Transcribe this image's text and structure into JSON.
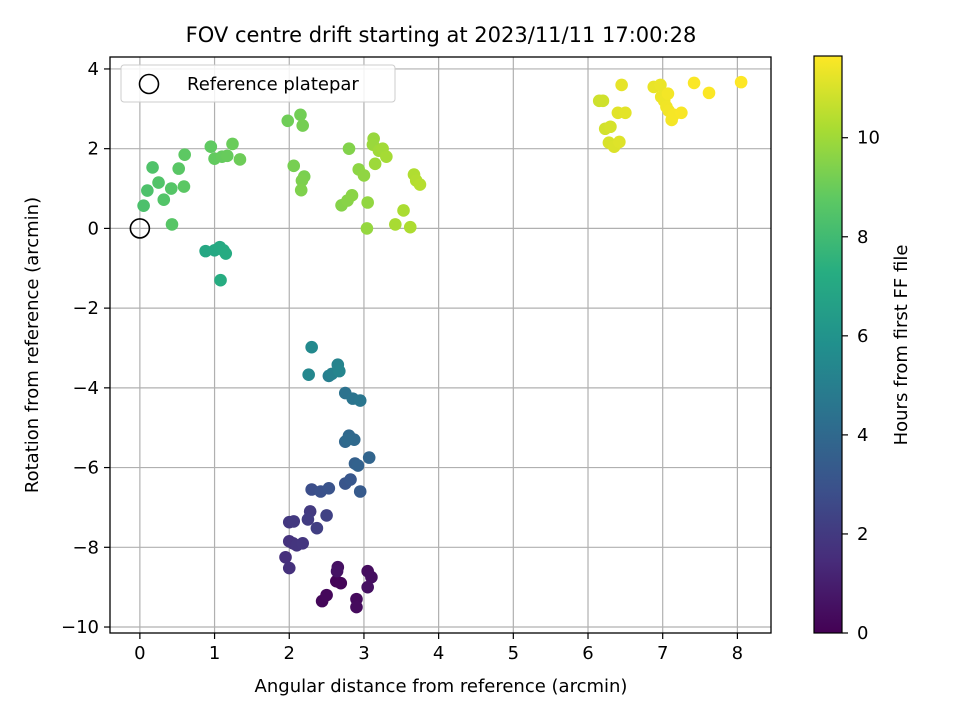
{
  "chart_data": {
    "type": "scatter",
    "title": "FOV centre drift starting at 2023/11/11 17:00:28",
    "xlabel": "Angular distance from reference (arcmin)",
    "ylabel": "Rotation from reference (arcmin)",
    "xlim": [
      -0.4,
      8.45
    ],
    "ylim": [
      -10.15,
      4.3
    ],
    "xticks": [
      0,
      1,
      2,
      3,
      4,
      5,
      6,
      7,
      8
    ],
    "yticks": [
      -10,
      -8,
      -6,
      -4,
      -2,
      0,
      2,
      4
    ],
    "grid": true,
    "legend": {
      "placement": "top-left",
      "entries": [
        "Reference platepar"
      ]
    },
    "reference_point": {
      "x": 0,
      "y": 0,
      "label": "Reference platepar"
    },
    "colorbar": {
      "label": "Hours from first FF file",
      "colormap": "viridis",
      "range": [
        0,
        11.65
      ],
      "ticks": [
        0,
        2,
        4,
        6,
        8,
        10
      ]
    },
    "series": [
      {
        "color_by": "hours",
        "points": [
          {
            "x": 2.63,
            "y": -8.85,
            "hours": 0.1
          },
          {
            "x": 2.69,
            "y": -8.9,
            "hours": 0.15
          },
          {
            "x": 2.44,
            "y": -9.35,
            "hours": 0.2
          },
          {
            "x": 2.5,
            "y": -9.2,
            "hours": 0.25
          },
          {
            "x": 2.9,
            "y": -9.3,
            "hours": 0.3
          },
          {
            "x": 2.9,
            "y": -9.5,
            "hours": 0.35
          },
          {
            "x": 3.05,
            "y": -8.6,
            "hours": 0.4
          },
          {
            "x": 3.1,
            "y": -8.75,
            "hours": 0.45
          },
          {
            "x": 3.05,
            "y": -9.0,
            "hours": 0.5
          },
          {
            "x": 2.65,
            "y": -8.5,
            "hours": 0.55
          },
          {
            "x": 2.64,
            "y": -8.6,
            "hours": 0.6
          },
          {
            "x": 1.95,
            "y": -8.25,
            "hours": 1.6
          },
          {
            "x": 2.0,
            "y": -8.52,
            "hours": 1.65
          },
          {
            "x": 2.0,
            "y": -7.85,
            "hours": 1.7
          },
          {
            "x": 2.05,
            "y": -7.9,
            "hours": 1.75
          },
          {
            "x": 2.1,
            "y": -7.95,
            "hours": 1.8
          },
          {
            "x": 2.18,
            "y": -7.9,
            "hours": 1.85
          },
          {
            "x": 2.0,
            "y": -7.37,
            "hours": 1.9
          },
          {
            "x": 2.06,
            "y": -7.35,
            "hours": 1.95
          },
          {
            "x": 2.28,
            "y": -7.1,
            "hours": 2.0
          },
          {
            "x": 2.25,
            "y": -7.3,
            "hours": 2.1
          },
          {
            "x": 2.37,
            "y": -7.52,
            "hours": 2.2
          },
          {
            "x": 2.5,
            "y": -7.2,
            "hours": 2.3
          },
          {
            "x": 2.3,
            "y": -6.55,
            "hours": 2.8
          },
          {
            "x": 2.42,
            "y": -6.6,
            "hours": 2.9
          },
          {
            "x": 2.53,
            "y": -6.52,
            "hours": 3.0
          },
          {
            "x": 2.75,
            "y": -6.4,
            "hours": 3.1
          },
          {
            "x": 2.82,
            "y": -6.3,
            "hours": 3.2
          },
          {
            "x": 2.95,
            "y": -6.6,
            "hours": 3.3
          },
          {
            "x": 2.88,
            "y": -5.9,
            "hours": 3.6
          },
          {
            "x": 2.92,
            "y": -5.95,
            "hours": 3.7
          },
          {
            "x": 3.07,
            "y": -5.75,
            "hours": 3.8
          },
          {
            "x": 2.75,
            "y": -5.35,
            "hours": 3.9
          },
          {
            "x": 2.8,
            "y": -5.2,
            "hours": 3.95
          },
          {
            "x": 2.87,
            "y": -5.3,
            "hours": 4.0
          },
          {
            "x": 2.78,
            "y": -5.3,
            "hours": 4.05
          },
          {
            "x": 2.75,
            "y": -4.13,
            "hours": 4.4
          },
          {
            "x": 2.85,
            "y": -4.27,
            "hours": 4.5
          },
          {
            "x": 2.95,
            "y": -4.32,
            "hours": 4.6
          },
          {
            "x": 2.53,
            "y": -3.7,
            "hours": 5.0
          },
          {
            "x": 2.57,
            "y": -3.65,
            "hours": 5.1
          },
          {
            "x": 2.65,
            "y": -3.42,
            "hours": 5.2
          },
          {
            "x": 2.67,
            "y": -3.58,
            "hours": 5.3
          },
          {
            "x": 2.26,
            "y": -3.67,
            "hours": 5.4
          },
          {
            "x": 2.3,
            "y": -2.98,
            "hours": 5.5
          },
          {
            "x": 0.88,
            "y": -0.57,
            "hours": 7.0
          },
          {
            "x": 1.0,
            "y": -0.55,
            "hours": 7.05
          },
          {
            "x": 1.07,
            "y": -0.47,
            "hours": 7.1
          },
          {
            "x": 1.12,
            "y": -0.55,
            "hours": 7.15
          },
          {
            "x": 1.15,
            "y": -0.63,
            "hours": 7.2
          },
          {
            "x": 1.08,
            "y": -1.3,
            "hours": 7.25
          },
          {
            "x": 0.05,
            "y": 0.57,
            "hours": 8.3
          },
          {
            "x": 0.1,
            "y": 0.95,
            "hours": 8.35
          },
          {
            "x": 0.17,
            "y": 1.53,
            "hours": 8.4
          },
          {
            "x": 0.25,
            "y": 1.15,
            "hours": 8.45
          },
          {
            "x": 0.32,
            "y": 0.72,
            "hours": 8.5
          },
          {
            "x": 0.42,
            "y": 1.0,
            "hours": 8.55
          },
          {
            "x": 0.43,
            "y": 0.1,
            "hours": 8.6
          },
          {
            "x": 0.52,
            "y": 1.5,
            "hours": 8.65
          },
          {
            "x": 0.59,
            "y": 1.05,
            "hours": 8.7
          },
          {
            "x": 0.6,
            "y": 1.85,
            "hours": 8.75
          },
          {
            "x": 0.95,
            "y": 2.05,
            "hours": 8.8
          },
          {
            "x": 1.0,
            "y": 1.75,
            "hours": 8.85
          },
          {
            "x": 1.1,
            "y": 1.8,
            "hours": 8.9
          },
          {
            "x": 1.17,
            "y": 1.82,
            "hours": 8.95
          },
          {
            "x": 1.24,
            "y": 2.12,
            "hours": 9.0
          },
          {
            "x": 1.34,
            "y": 1.73,
            "hours": 9.05
          },
          {
            "x": 1.98,
            "y": 2.7,
            "hours": 9.1
          },
          {
            "x": 2.15,
            "y": 2.85,
            "hours": 9.15
          },
          {
            "x": 2.18,
            "y": 2.58,
            "hours": 9.2
          },
          {
            "x": 2.06,
            "y": 1.57,
            "hours": 9.25
          },
          {
            "x": 2.2,
            "y": 1.3,
            "hours": 9.3
          },
          {
            "x": 2.17,
            "y": 1.2,
            "hours": 9.35
          },
          {
            "x": 2.16,
            "y": 0.96,
            "hours": 9.4
          },
          {
            "x": 2.8,
            "y": 2.0,
            "hours": 9.45
          },
          {
            "x": 2.7,
            "y": 0.58,
            "hours": 9.5
          },
          {
            "x": 2.78,
            "y": 0.7,
            "hours": 9.55
          },
          {
            "x": 2.84,
            "y": 0.83,
            "hours": 9.6
          },
          {
            "x": 2.93,
            "y": 1.48,
            "hours": 9.65
          },
          {
            "x": 3.0,
            "y": 1.33,
            "hours": 9.7
          },
          {
            "x": 3.05,
            "y": 0.65,
            "hours": 9.75
          },
          {
            "x": 3.04,
            "y": 0.0,
            "hours": 9.8
          },
          {
            "x": 3.13,
            "y": 2.25,
            "hours": 9.85
          },
          {
            "x": 3.12,
            "y": 2.1,
            "hours": 9.9
          },
          {
            "x": 3.15,
            "y": 1.62,
            "hours": 9.95
          },
          {
            "x": 3.2,
            "y": 1.95,
            "hours": 10.0
          },
          {
            "x": 3.25,
            "y": 2.0,
            "hours": 10.05
          },
          {
            "x": 3.3,
            "y": 1.8,
            "hours": 10.1
          },
          {
            "x": 3.42,
            "y": 0.1,
            "hours": 10.15
          },
          {
            "x": 3.53,
            "y": 0.45,
            "hours": 10.2
          },
          {
            "x": 3.62,
            "y": 0.03,
            "hours": 10.25
          },
          {
            "x": 3.67,
            "y": 1.35,
            "hours": 10.3
          },
          {
            "x": 3.7,
            "y": 1.2,
            "hours": 10.35
          },
          {
            "x": 3.75,
            "y": 1.1,
            "hours": 10.4
          },
          {
            "x": 6.15,
            "y": 3.2,
            "hours": 10.8
          },
          {
            "x": 6.2,
            "y": 3.2,
            "hours": 10.85
          },
          {
            "x": 6.23,
            "y": 2.5,
            "hours": 10.9
          },
          {
            "x": 6.3,
            "y": 2.55,
            "hours": 10.95
          },
          {
            "x": 6.28,
            "y": 2.15,
            "hours": 11.0
          },
          {
            "x": 6.35,
            "y": 2.05,
            "hours": 11.05
          },
          {
            "x": 6.42,
            "y": 2.17,
            "hours": 11.1
          },
          {
            "x": 6.4,
            "y": 2.9,
            "hours": 11.15
          },
          {
            "x": 6.5,
            "y": 2.9,
            "hours": 11.2
          },
          {
            "x": 6.45,
            "y": 3.6,
            "hours": 11.25
          },
          {
            "x": 6.88,
            "y": 3.55,
            "hours": 11.3
          },
          {
            "x": 6.97,
            "y": 3.6,
            "hours": 11.33
          },
          {
            "x": 6.98,
            "y": 3.3,
            "hours": 11.36
          },
          {
            "x": 7.02,
            "y": 3.2,
            "hours": 11.39
          },
          {
            "x": 7.05,
            "y": 3.05,
            "hours": 11.42
          },
          {
            "x": 7.08,
            "y": 2.95,
            "hours": 11.45
          },
          {
            "x": 7.07,
            "y": 3.38,
            "hours": 11.48
          },
          {
            "x": 7.12,
            "y": 2.72,
            "hours": 11.5
          },
          {
            "x": 7.15,
            "y": 2.85,
            "hours": 11.53
          },
          {
            "x": 7.25,
            "y": 2.9,
            "hours": 11.56
          },
          {
            "x": 7.42,
            "y": 3.65,
            "hours": 11.59
          },
          {
            "x": 7.62,
            "y": 3.4,
            "hours": 11.62
          },
          {
            "x": 8.05,
            "y": 3.67,
            "hours": 11.65
          }
        ]
      }
    ]
  }
}
